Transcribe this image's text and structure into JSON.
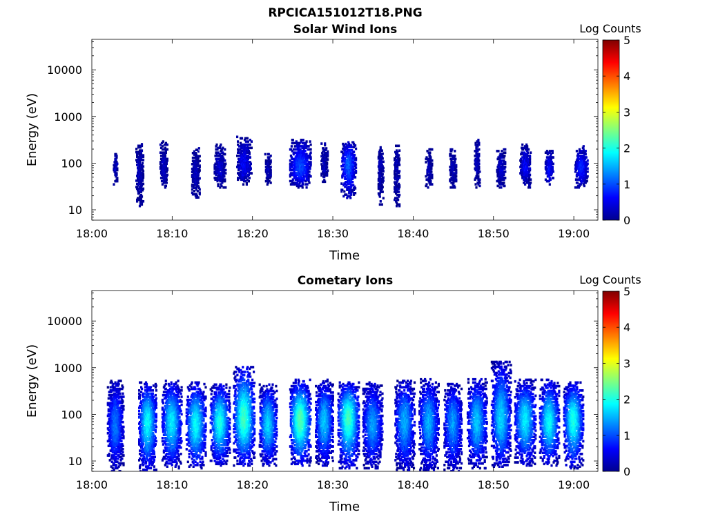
{
  "figure_title": "RPCICA151012T18.PNG",
  "chart_data": [
    {
      "type": "heatmap",
      "title": "Solar Wind Ions",
      "xlabel": "Time",
      "ylabel": "Energy (eV)",
      "x_range": [
        "18:00",
        "19:03"
      ],
      "x_ticks": [
        "18:00",
        "18:10",
        "18:20",
        "18:30",
        "18:40",
        "18:50",
        "19:00"
      ],
      "y_scale": "log",
      "y_range": [
        6,
        45000
      ],
      "y_ticks": [
        "10",
        "100",
        "1000",
        "10000"
      ],
      "colorbar": {
        "title": "Log Counts",
        "range": [
          0,
          5
        ],
        "ticks": [
          "0",
          "1",
          "2",
          "3",
          "4",
          "5"
        ],
        "colormap": "jet"
      },
      "bursts": [
        {
          "t": "18:03",
          "e_center": 80,
          "e_low": 35,
          "e_high": 180,
          "peak_log_counts": 0.3,
          "width_min": 0.5
        },
        {
          "t": "18:06",
          "e_center": 70,
          "e_low": 12,
          "e_high": 270,
          "peak_log_counts": 0.3,
          "width_min": 0.9
        },
        {
          "t": "18:09",
          "e_center": 70,
          "e_low": 30,
          "e_high": 300,
          "peak_log_counts": 0.3,
          "width_min": 0.9
        },
        {
          "t": "18:13",
          "e_center": 60,
          "e_low": 17,
          "e_high": 220,
          "peak_log_counts": 0.3,
          "width_min": 1.0
        },
        {
          "t": "18:16",
          "e_center": 80,
          "e_low": 30,
          "e_high": 250,
          "peak_log_counts": 0.4,
          "width_min": 1.4
        },
        {
          "t": "18:19",
          "e_center": 90,
          "e_low": 35,
          "e_high": 380,
          "peak_log_counts": 0.6,
          "width_min": 1.8
        },
        {
          "t": "18:22",
          "e_center": 70,
          "e_low": 35,
          "e_high": 160,
          "peak_log_counts": 0.3,
          "width_min": 0.8
        },
        {
          "t": "18:26",
          "e_center": 80,
          "e_low": 30,
          "e_high": 330,
          "peak_log_counts": 1.0,
          "width_min": 2.6
        },
        {
          "t": "18:29",
          "e_center": 90,
          "e_low": 40,
          "e_high": 280,
          "peak_log_counts": 0.3,
          "width_min": 0.8
        },
        {
          "t": "18:32",
          "e_center": 100,
          "e_low": 18,
          "e_high": 300,
          "peak_log_counts": 1.1,
          "width_min": 1.8
        },
        {
          "t": "18:36",
          "e_center": 90,
          "e_low": 12,
          "e_high": 250,
          "peak_log_counts": 0.3,
          "width_min": 0.6
        },
        {
          "t": "18:38",
          "e_center": 60,
          "e_low": 12,
          "e_high": 250,
          "peak_log_counts": 0.3,
          "width_min": 0.6
        },
        {
          "t": "18:42",
          "e_center": 70,
          "e_low": 30,
          "e_high": 200,
          "peak_log_counts": 0.3,
          "width_min": 0.8
        },
        {
          "t": "18:45",
          "e_center": 80,
          "e_low": 30,
          "e_high": 200,
          "peak_log_counts": 0.3,
          "width_min": 0.8
        },
        {
          "t": "18:48",
          "e_center": 90,
          "e_low": 30,
          "e_high": 350,
          "peak_log_counts": 0.3,
          "width_min": 0.6
        },
        {
          "t": "18:51",
          "e_center": 70,
          "e_low": 30,
          "e_high": 200,
          "peak_log_counts": 0.4,
          "width_min": 1.1
        },
        {
          "t": "18:54",
          "e_center": 80,
          "e_low": 30,
          "e_high": 250,
          "peak_log_counts": 0.6,
          "width_min": 1.3
        },
        {
          "t": "18:57",
          "e_center": 70,
          "e_low": 35,
          "e_high": 200,
          "peak_log_counts": 0.7,
          "width_min": 1.0
        },
        {
          "t": "19:01",
          "e_center": 80,
          "e_low": 30,
          "e_high": 230,
          "peak_log_counts": 0.8,
          "width_min": 1.6
        }
      ]
    },
    {
      "type": "heatmap",
      "title": "Cometary Ions",
      "xlabel": "Time",
      "ylabel": "Energy (eV)",
      "x_range": [
        "18:00",
        "19:03"
      ],
      "x_ticks": [
        "18:00",
        "18:10",
        "18:20",
        "18:30",
        "18:40",
        "18:50",
        "19:00"
      ],
      "y_scale": "log",
      "y_range": [
        6,
        45000
      ],
      "y_ticks": [
        "10",
        "100",
        "1000",
        "10000"
      ],
      "colorbar": {
        "title": "Log Counts",
        "range": [
          0,
          5
        ],
        "ticks": [
          "0",
          "1",
          "2",
          "3",
          "4",
          "5"
        ],
        "colormap": "jet"
      },
      "bursts": [
        {
          "t": "18:03",
          "e_center": 60,
          "e_low": 6,
          "e_high": 550,
          "peak_log_counts": 1.2,
          "width_min": 2.0
        },
        {
          "t": "18:07",
          "e_center": 70,
          "e_low": 6,
          "e_high": 500,
          "peak_log_counts": 1.9,
          "width_min": 2.2
        },
        {
          "t": "18:10",
          "e_center": 70,
          "e_low": 7,
          "e_high": 550,
          "peak_log_counts": 1.8,
          "width_min": 2.4
        },
        {
          "t": "18:13",
          "e_center": 60,
          "e_low": 7,
          "e_high": 500,
          "peak_log_counts": 1.9,
          "width_min": 2.4
        },
        {
          "t": "18:16",
          "e_center": 70,
          "e_low": 8,
          "e_high": 450,
          "peak_log_counts": 2.0,
          "width_min": 2.4
        },
        {
          "t": "18:19",
          "e_center": 80,
          "e_low": 8,
          "e_high": 1100,
          "peak_log_counts": 2.2,
          "width_min": 2.6
        },
        {
          "t": "18:22",
          "e_center": 60,
          "e_low": 8,
          "e_high": 450,
          "peak_log_counts": 1.7,
          "width_min": 2.2
        },
        {
          "t": "18:26",
          "e_center": 80,
          "e_low": 8,
          "e_high": 550,
          "peak_log_counts": 2.3,
          "width_min": 2.6
        },
        {
          "t": "18:29",
          "e_center": 70,
          "e_low": 8,
          "e_high": 550,
          "peak_log_counts": 1.6,
          "width_min": 2.2
        },
        {
          "t": "18:32",
          "e_center": 90,
          "e_low": 7,
          "e_high": 500,
          "peak_log_counts": 2.2,
          "width_min": 2.6
        },
        {
          "t": "18:35",
          "e_center": 60,
          "e_low": 7,
          "e_high": 500,
          "peak_log_counts": 1.4,
          "width_min": 2.4
        },
        {
          "t": "18:39",
          "e_center": 70,
          "e_low": 6,
          "e_high": 550,
          "peak_log_counts": 1.5,
          "width_min": 2.4
        },
        {
          "t": "18:42",
          "e_center": 70,
          "e_low": 6,
          "e_high": 600,
          "peak_log_counts": 1.5,
          "width_min": 2.4
        },
        {
          "t": "18:45",
          "e_center": 70,
          "e_low": 6,
          "e_high": 450,
          "peak_log_counts": 1.4,
          "width_min": 2.2
        },
        {
          "t": "18:48",
          "e_center": 70,
          "e_low": 7,
          "e_high": 600,
          "peak_log_counts": 1.6,
          "width_min": 2.4
        },
        {
          "t": "18:51",
          "e_center": 80,
          "e_low": 7,
          "e_high": 1400,
          "peak_log_counts": 1.7,
          "width_min": 2.4
        },
        {
          "t": "18:54",
          "e_center": 80,
          "e_low": 8,
          "e_high": 550,
          "peak_log_counts": 1.8,
          "width_min": 2.6
        },
        {
          "t": "18:57",
          "e_center": 70,
          "e_low": 8,
          "e_high": 550,
          "peak_log_counts": 1.9,
          "width_min": 2.4
        },
        {
          "t": "19:00",
          "e_center": 80,
          "e_low": 7,
          "e_high": 500,
          "peak_log_counts": 2.0,
          "width_min": 2.4
        }
      ]
    }
  ]
}
